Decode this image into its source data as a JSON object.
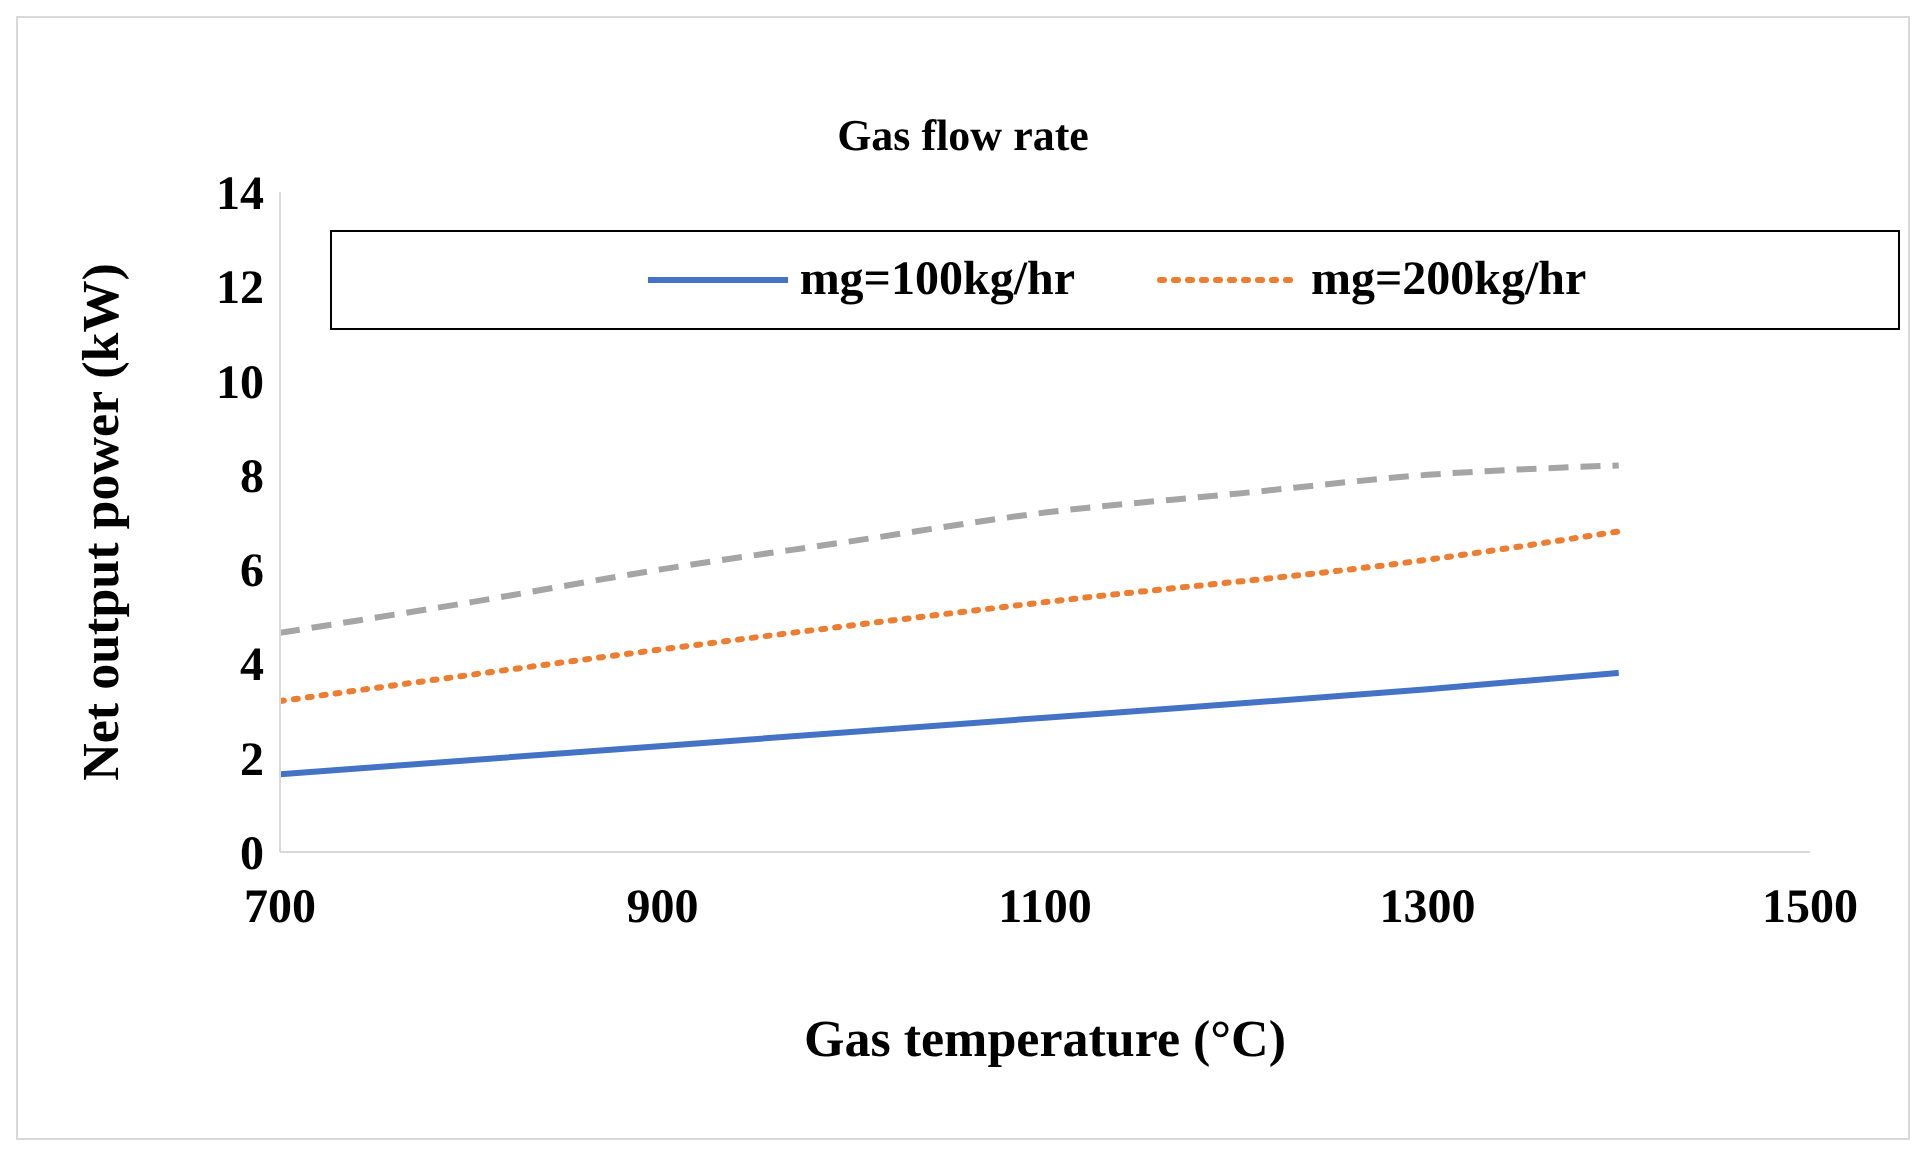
{
  "chart_data": {
    "type": "line",
    "title": "Gas flow rate",
    "xlabel": "Gas temperature (°C)",
    "ylabel": "Net output power (kW)",
    "xlim": [
      700,
      1500
    ],
    "xticks": [
      700,
      900,
      1100,
      1300,
      1500
    ],
    "ylim": [
      0,
      14
    ],
    "yticks": [
      0,
      2,
      4,
      6,
      8,
      10,
      12,
      14
    ],
    "grid": false,
    "legend": "top",
    "marker": "none",
    "series": [
      {
        "name": "mg=100kg/hr",
        "color": "#4472c4",
        "line_style": "solid",
        "x": [
          700,
          900,
          1100,
          1300,
          1400
        ],
        "values": [
          1.65,
          2.25,
          2.85,
          3.45,
          3.8
        ]
      },
      {
        "name": "mg=200kg/hr",
        "color": "#ed7d31",
        "line_style": "dotted",
        "x": [
          700,
          900,
          1100,
          1300,
          1400
        ],
        "values": [
          3.2,
          4.3,
          5.3,
          6.2,
          6.8
        ]
      },
      {
        "color": "#a5a5a5",
        "line_style": "dashed",
        "x": [
          700,
          800,
          900,
          1000,
          1100,
          1200,
          1300,
          1400
        ],
        "values": [
          4.65,
          5.3,
          6.0,
          6.6,
          7.2,
          7.6,
          8.0,
          8.2
        ]
      }
    ]
  }
}
